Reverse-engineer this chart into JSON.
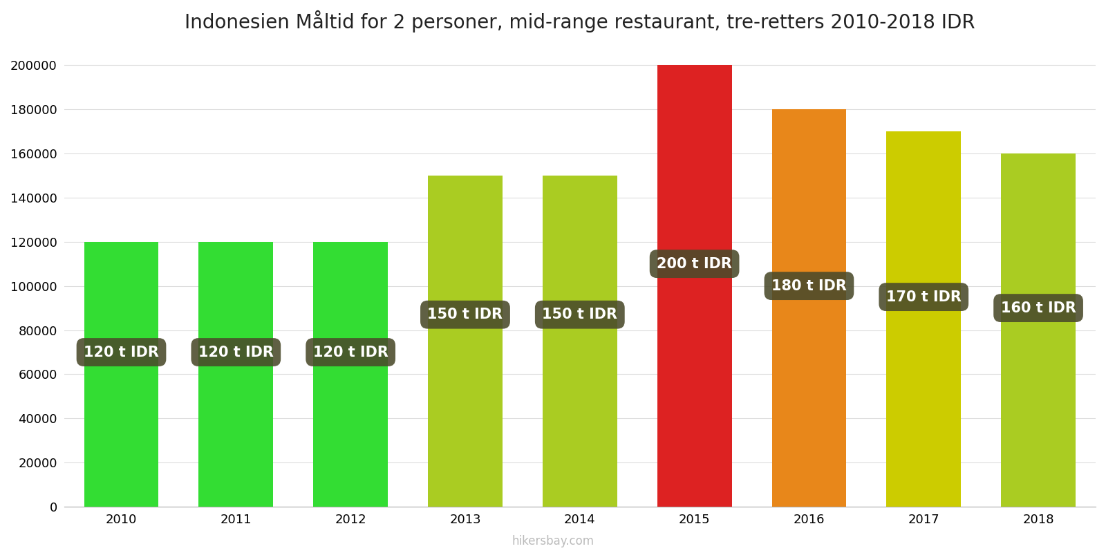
{
  "title": "Indonesien Måltid for 2 personer, mid-range restaurant, tre-retters 2010-2018 IDR",
  "years": [
    2010,
    2011,
    2012,
    2013,
    2014,
    2015,
    2016,
    2017,
    2018
  ],
  "values": [
    120000,
    120000,
    120000,
    150000,
    150000,
    200000,
    180000,
    170000,
    160000
  ],
  "labels": [
    "120 t IDR",
    "120 t IDR",
    "120 t IDR",
    "150 t IDR",
    "150 t IDR",
    "200 t IDR",
    "180 t IDR",
    "170 t IDR",
    "160 t IDR"
  ],
  "bar_colors": [
    "#33dd33",
    "#33dd33",
    "#33dd33",
    "#aacc22",
    "#aacc22",
    "#dd2222",
    "#e8871a",
    "#cccc00",
    "#aacc22"
  ],
  "label_box_color": "#4a4a2a",
  "label_text_color": "#ffffff",
  "ylim": [
    0,
    210000
  ],
  "yticks": [
    0,
    20000,
    40000,
    60000,
    80000,
    100000,
    120000,
    140000,
    160000,
    180000,
    200000
  ],
  "background_color": "#ffffff",
  "watermark": "hikersbay.com",
  "title_fontsize": 20,
  "label_fontsize": 15,
  "tick_fontsize": 13,
  "label_y_positions": [
    70000,
    70000,
    70000,
    87000,
    87000,
    110000,
    100000,
    95000,
    90000
  ]
}
